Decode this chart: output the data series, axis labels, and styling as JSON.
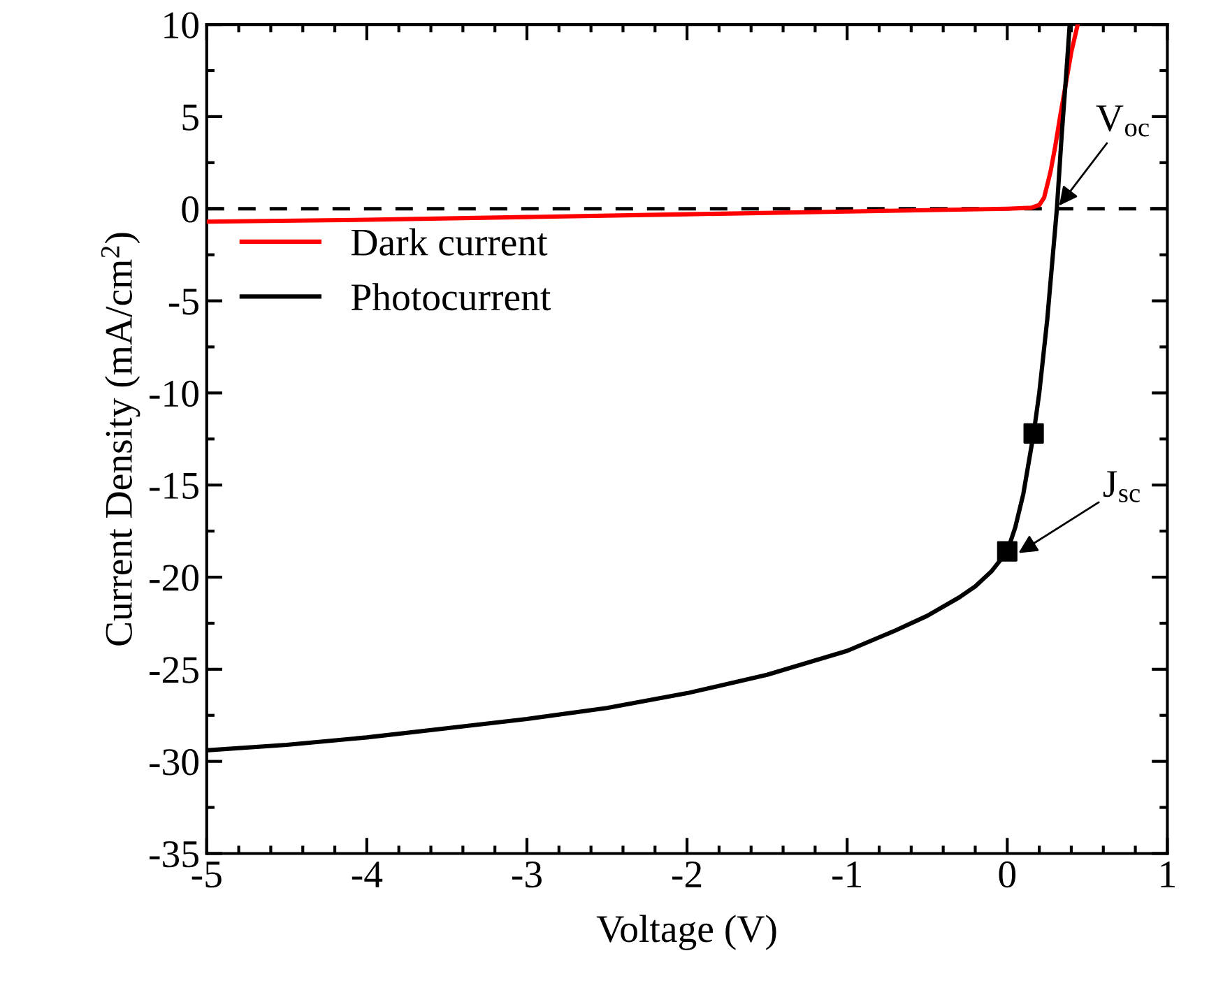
{
  "chart_data": {
    "type": "line",
    "xlabel": "Voltage (V)",
    "ylabel": "Current Density (mA/cm$^{2}$)",
    "xlim": [
      -5,
      1
    ],
    "ylim": [
      -35,
      10
    ],
    "xticks": [
      -5,
      -4,
      -3,
      -2,
      -1,
      0,
      1
    ],
    "yticks": [
      -35,
      -30,
      -25,
      -20,
      -15,
      -10,
      -5,
      0,
      5,
      10
    ],
    "grid": false,
    "legend": "left",
    "line_style": "solid",
    "series": [
      {
        "name": "Dark current",
        "color": "#ff0000",
        "x": [
          -5,
          -4,
          -3,
          -2,
          -1,
          0,
          0.15,
          0.2,
          0.23,
          0.27,
          0.3,
          0.33,
          0.37,
          0.4,
          0.44
        ],
        "values": [
          -0.7,
          -0.6,
          -0.45,
          -0.3,
          -0.15,
          0,
          0.05,
          0.2,
          0.6,
          2,
          3.4,
          5,
          7,
          8.5,
          10
        ]
      },
      {
        "name": "Photocurrent",
        "color": "#000000",
        "x": [
          -5,
          -4.5,
          -4,
          -3.5,
          -3,
          -2.5,
          -2,
          -1.5,
          -1,
          -0.7,
          -0.5,
          -0.3,
          -0.2,
          -0.1,
          0,
          0.05,
          0.1,
          0.165,
          0.2,
          0.25,
          0.31,
          0.34,
          0.37,
          0.39
        ],
        "values": [
          -29.4,
          -29.1,
          -28.7,
          -28.2,
          -27.7,
          -27.1,
          -26.3,
          -25.3,
          -24.0,
          -22.9,
          -22.1,
          -21.1,
          -20.5,
          -19.7,
          -18.6,
          -17.3,
          -15.5,
          -12.2,
          -10,
          -6,
          0,
          4,
          7.5,
          10
        ]
      },
      {
        "type": "scatter",
        "marker": "square",
        "color": "#000000",
        "x": [
          0,
          0.165
        ],
        "values": [
          -18.6,
          -12.2
        ]
      }
    ],
    "ref_lines": [
      {
        "axis": "y",
        "value": 0,
        "color": "#000000",
        "line_style": "dashed"
      }
    ],
    "annotations": [
      {
        "text": "V$_{oc}$",
        "x": 0.31,
        "y": 0
      },
      {
        "text": "J$_{sc}$",
        "x": 0.05,
        "y": -18.8
      }
    ]
  }
}
